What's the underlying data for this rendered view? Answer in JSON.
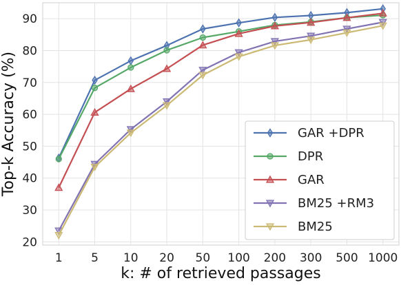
{
  "chart_data": {
    "type": "line",
    "title": "",
    "xlabel": "k: # of retrieved passages",
    "ylabel": "Top-k Accuracy (%)",
    "categories": [
      "1",
      "5",
      "10",
      "20",
      "50",
      "100",
      "200",
      "300",
      "500",
      "1000"
    ],
    "ylim": [
      19,
      95
    ],
    "yticks": [
      20,
      30,
      40,
      50,
      60,
      70,
      80,
      90
    ],
    "grid": true,
    "legend_position": "bottom-right",
    "series": [
      {
        "name": "GAR +DPR",
        "color": "#4c72b0",
        "marker": "diamond",
        "values": [
          46.3,
          70.7,
          76.8,
          81.6,
          86.8,
          88.7,
          90.4,
          91.0,
          91.9,
          93.1
        ]
      },
      {
        "name": "DPR",
        "color": "#55a868",
        "marker": "circle",
        "values": [
          46.0,
          68.3,
          74.7,
          80.1,
          84.1,
          86.0,
          88.0,
          89.0,
          90.3,
          91.1
        ]
      },
      {
        "name": "GAR",
        "color": "#c44e52",
        "marker": "triangle-up",
        "values": [
          37.0,
          60.6,
          68.0,
          74.3,
          81.7,
          85.3,
          87.7,
          88.8,
          90.3,
          91.7
        ]
      },
      {
        "name": "BM25 +RM3",
        "color": "#8172b2",
        "marker": "triangle-down",
        "values": [
          23.5,
          44.4,
          55.3,
          64.0,
          73.9,
          79.4,
          82.9,
          84.6,
          86.8,
          88.9
        ]
      },
      {
        "name": "BM25",
        "color": "#ccb974",
        "marker": "triangle-down",
        "values": [
          22.1,
          43.5,
          54.2,
          62.8,
          72.3,
          78.1,
          81.6,
          83.4,
          85.6,
          87.8
        ]
      }
    ]
  }
}
